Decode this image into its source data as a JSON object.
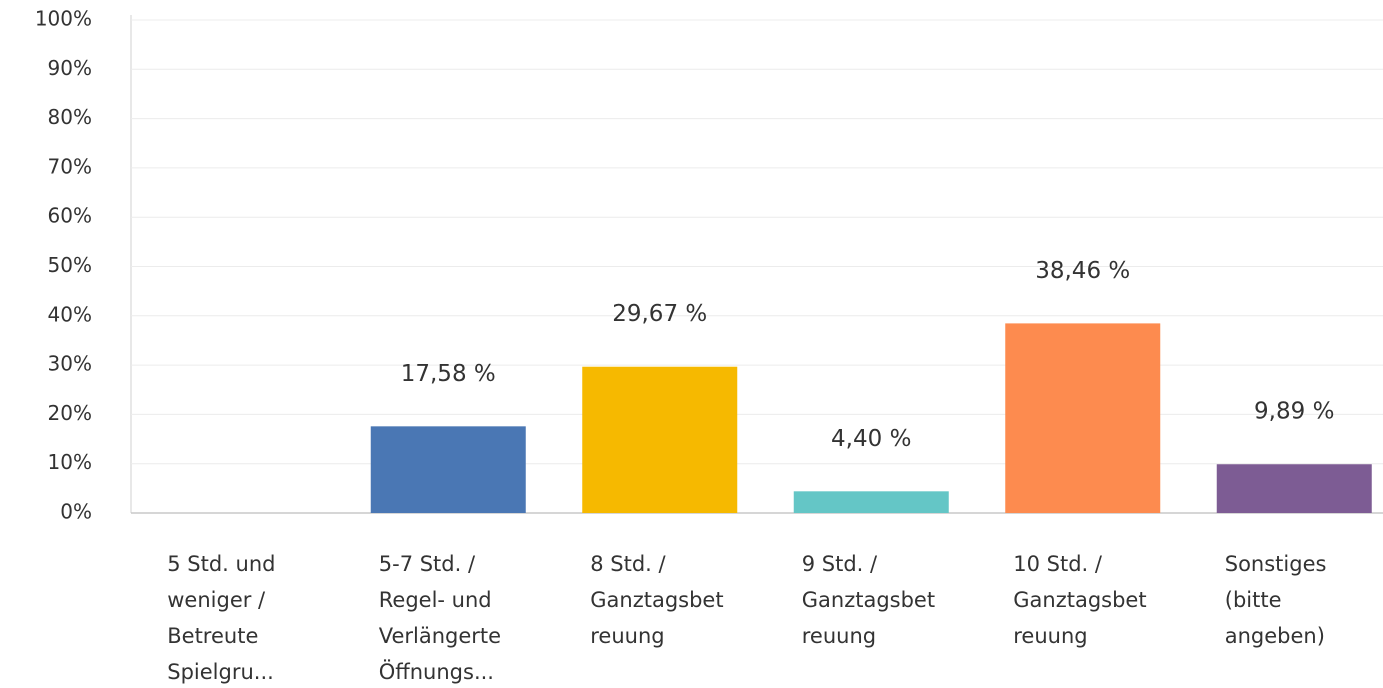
{
  "chart_data": {
    "type": "bar",
    "categories": [
      [
        "5 Std. und",
        "weniger /",
        "Betreute",
        "Spielgru..."
      ],
      [
        "5-7 Std. /",
        "Regel- und",
        "Verlängerte",
        "Öffnungs..."
      ],
      [
        "8 Std. /",
        "Ganztagsbet",
        "reuung"
      ],
      [
        "9 Std. /",
        "Ganztagsbet",
        "reuung"
      ],
      [
        "10 Std. /",
        "Ganztagsbet",
        "reuung"
      ],
      [
        "Sonstiges",
        "(bitte",
        "angeben)"
      ]
    ],
    "values": [
      0,
      17.58,
      29.67,
      4.4,
      38.46,
      9.89
    ],
    "value_labels": [
      null,
      "17,58 %",
      "29,67 %",
      "4,40 %",
      "38,46 %",
      "9,89 %"
    ],
    "colors": [
      "#4a77b4",
      "#4a77b4",
      "#f6b900",
      "#64c6c6",
      "#fd8b4f",
      "#7d5c94"
    ],
    "ylim": [
      0,
      100
    ],
    "yticks": [
      {
        "value": 0,
        "label": "0%"
      },
      {
        "value": 10,
        "label": "10%"
      },
      {
        "value": 20,
        "label": "20%"
      },
      {
        "value": 30,
        "label": "30%"
      },
      {
        "value": 40,
        "label": "40%"
      },
      {
        "value": 50,
        "label": "50%"
      },
      {
        "value": 60,
        "label": "60%"
      },
      {
        "value": 70,
        "label": "70%"
      },
      {
        "value": 80,
        "label": "80%"
      },
      {
        "value": 90,
        "label": "90%"
      },
      {
        "value": 100,
        "label": "100%"
      }
    ],
    "grid": true
  }
}
